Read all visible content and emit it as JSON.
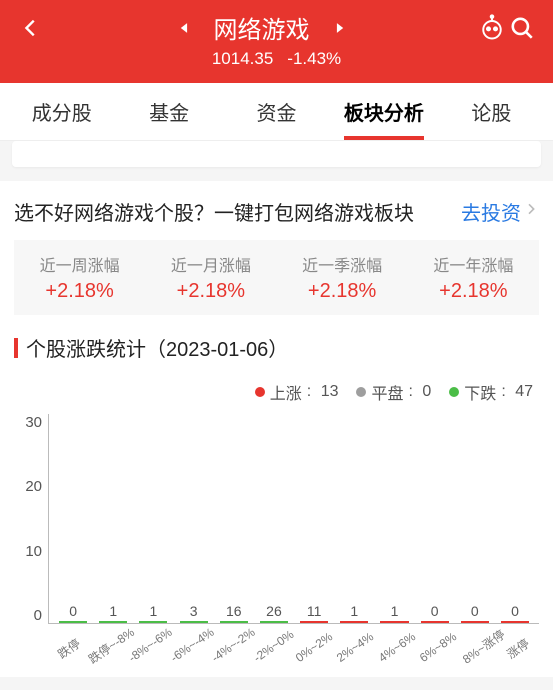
{
  "colors": {
    "primary": "#e7352e",
    "up": "#e7352e",
    "down": "#4bbd47",
    "flat": "#9e9e9e",
    "link": "#2a7ae2"
  },
  "header": {
    "title": "网络游戏",
    "price": "1014.35",
    "change": "-1.43%"
  },
  "tabs": [
    "成分股",
    "基金",
    "资金",
    "板块分析",
    "论股"
  ],
  "active_tab_index": 3,
  "promo": {
    "text": "选不好网络游戏个股？一键打包网络游戏板块",
    "link_label": "去投资"
  },
  "stats": [
    {
      "label": "近一周涨幅",
      "value": "+2.18%"
    },
    {
      "label": "近一月涨幅",
      "value": "+2.18%"
    },
    {
      "label": "近一季涨幅",
      "value": "+2.18%"
    },
    {
      "label": "近一年涨幅",
      "value": "+2.18%"
    }
  ],
  "chart": {
    "title_prefix": "个股涨跌统计",
    "date": "（2023-01-06）",
    "legend": {
      "up_label": "上涨",
      "up_count": "13",
      "flat_label": "平盘",
      "flat_count": "0",
      "down_label": "下跌",
      "down_count": "47"
    },
    "ymax": 30,
    "yticks": [
      "30",
      "20",
      "10",
      "0"
    ],
    "bars": [
      {
        "label": "跌停",
        "value": 0,
        "kind": "down"
      },
      {
        "label": "跌停~-8%",
        "value": 1,
        "kind": "down"
      },
      {
        "label": "-8%~-6%",
        "value": 1,
        "kind": "down"
      },
      {
        "label": "-6%~-4%",
        "value": 3,
        "kind": "down"
      },
      {
        "label": "-4%~-2%",
        "value": 16,
        "kind": "down"
      },
      {
        "label": "-2%~0%",
        "value": 26,
        "kind": "down"
      },
      {
        "label": "0%~2%",
        "value": 11,
        "kind": "up"
      },
      {
        "label": "2%~4%",
        "value": 1,
        "kind": "up"
      },
      {
        "label": "4%~6%",
        "value": 1,
        "kind": "up"
      },
      {
        "label": "6%~8%",
        "value": 0,
        "kind": "up"
      },
      {
        "label": "8%~涨停",
        "value": 0,
        "kind": "up"
      },
      {
        "label": "涨停",
        "value": 0,
        "kind": "up"
      }
    ]
  }
}
